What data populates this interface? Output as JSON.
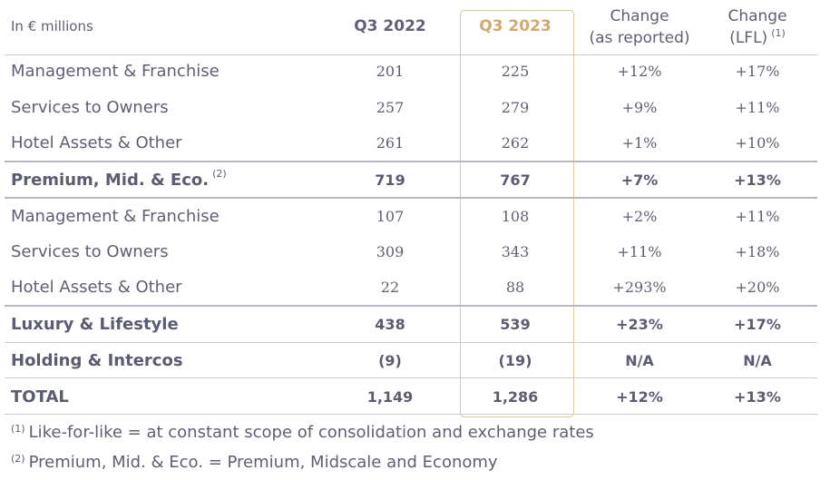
{
  "header": {
    "units": "In € millions",
    "col_q2022": "Q3 2022",
    "col_q2023": "Q3 2023",
    "col_rep_line1": "Change",
    "col_rep_line2": "(as reported)",
    "col_lfl_line1": "Change",
    "col_lfl_line2": "(LFL)",
    "col_lfl_sup": "(1)"
  },
  "rows": [
    {
      "label": "Management & Franchise",
      "q2022": "201",
      "q2023": "225",
      "rep": "+12%",
      "lfl": "+17%",
      "sup": ""
    },
    {
      "label": "Services to Owners",
      "q2022": "257",
      "q2023": "279",
      "rep": "+9%",
      "lfl": "+11%",
      "sup": ""
    },
    {
      "label": "Hotel Assets & Other",
      "q2022": "261",
      "q2023": "262",
      "rep": "+1%",
      "lfl": "+10%",
      "sup": ""
    },
    {
      "label": "Premium, Mid. & Eco.",
      "q2022": "719",
      "q2023": "767",
      "rep": "+7%",
      "lfl": "+13%",
      "sup": "(2)"
    },
    {
      "label": "Management & Franchise",
      "q2022": "107",
      "q2023": "108",
      "rep": "+2%",
      "lfl": "+11%",
      "sup": ""
    },
    {
      "label": "Services to Owners",
      "q2022": "309",
      "q2023": "343",
      "rep": "+11%",
      "lfl": "+18%",
      "sup": ""
    },
    {
      "label": "Hotel Assets & Other",
      "q2022": "22",
      "q2023": "88",
      "rep": "+293%",
      "lfl": "+20%",
      "sup": ""
    },
    {
      "label": "Luxury & Lifestyle",
      "q2022": "438",
      "q2023": "539",
      "rep": "+23%",
      "lfl": "+17%",
      "sup": ""
    },
    {
      "label": "Holding & Intercos",
      "q2022": "(9)",
      "q2023": "(19)",
      "rep": "N/A",
      "lfl": "N/A",
      "sup": ""
    },
    {
      "label": "TOTAL",
      "q2022": "1,149",
      "q2023": "1,286",
      "rep": "+12%",
      "lfl": "+13%",
      "sup": ""
    }
  ],
  "footnotes": [
    {
      "mark": "(1)",
      "text": "Like-for-like = at constant scope of consolidation and exchange rates"
    },
    {
      "mark": "(2)",
      "text": "Premium, Mid. & Eco. = Premium, Midscale and Economy"
    }
  ],
  "colors": {
    "highlight": "#d3a86b",
    "text": "#5f5f73"
  }
}
